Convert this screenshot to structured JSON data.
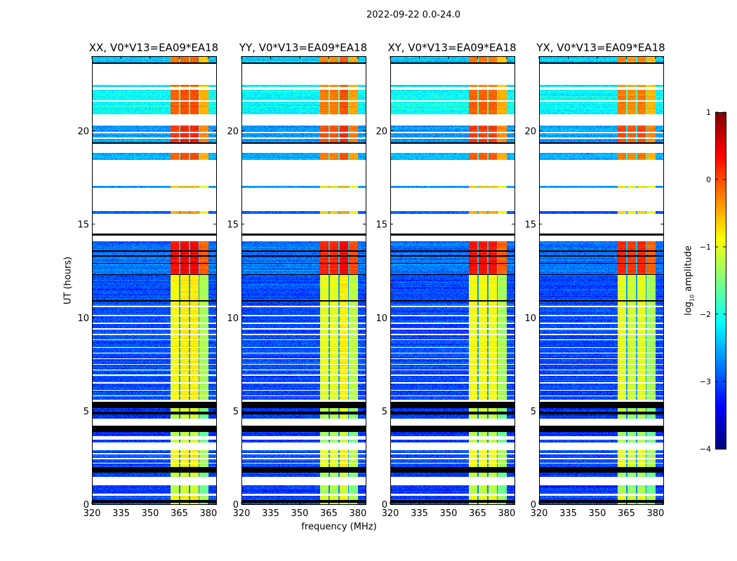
{
  "suptitle": "2022-09-22 0.0-24.0",
  "chart_data": {
    "type": "heatmap",
    "title": "2022-09-22 0.0-24.0",
    "xlabel": "frequency (MHz)",
    "ylabel": "UT (hours)",
    "xlim": [
      320,
      384
    ],
    "ylim": [
      0,
      24
    ],
    "xticks": [
      320,
      335,
      350,
      365,
      380
    ],
    "xtick_labels": [
      "320",
      "335",
      "350",
      "365",
      "380"
    ],
    "yticks": [
      0,
      5,
      10,
      15,
      20
    ],
    "ytick_labels": [
      "0",
      "5",
      "10",
      "15",
      "20"
    ],
    "colormap": "jet",
    "colorbar": {
      "label_prefix": "log",
      "label_sub": "10",
      "label_suffix": " amplitude",
      "range": [
        -4,
        1
      ],
      "ticks": [
        1,
        0,
        -1,
        -2,
        -3,
        -4
      ],
      "tick_labels": [
        "1",
        "0",
        "−1",
        "−2",
        "−3",
        "−4"
      ]
    },
    "panels": [
      {
        "title": "XX, V0*V13=EA09*EA18",
        "band_offset": [
          0.1,
          0.2,
          0.2,
          -0.3
        ]
      },
      {
        "title": "YY, V0*V13=EA09*EA18",
        "band_offset": [
          0.0,
          0.0,
          0.2,
          -0.2
        ]
      },
      {
        "title": "XY, V0*V13=EA09*EA18",
        "band_offset": [
          0.1,
          0.1,
          0.1,
          -0.3
        ]
      },
      {
        "title": "YX, V0*V13=EA09*EA18",
        "band_offset": [
          0.0,
          -0.1,
          0.0,
          -0.3
        ]
      }
    ],
    "bright_band_MHz": [
      360.5,
      380
    ],
    "subband_gaps_MHz": [
      365.2,
      370.2,
      375.2
    ],
    "time_segments": [
      {
        "from": 0.0,
        "to": 0.07,
        "kind": "data",
        "bg": -3.0,
        "band": -1.2
      },
      {
        "from": 0.07,
        "to": 0.22,
        "kind": "flagged"
      },
      {
        "from": 0.22,
        "to": 0.45,
        "kind": "data",
        "bg": -3.0,
        "band": -1.0
      },
      {
        "from": 0.45,
        "to": 0.55,
        "kind": "blank"
      },
      {
        "from": 0.55,
        "to": 1.0,
        "kind": "data",
        "bg": -3.1,
        "band": -1.3
      },
      {
        "from": 1.0,
        "to": 1.45,
        "kind": "blank"
      },
      {
        "from": 1.45,
        "to": 1.7,
        "kind": "data",
        "bg": -3.1,
        "band": -1.3
      },
      {
        "from": 1.7,
        "to": 2.0,
        "kind": "flagged"
      },
      {
        "from": 2.0,
        "to": 2.9,
        "kind": "data",
        "bg": -3.0,
        "band": -1.0
      },
      {
        "from": 2.9,
        "to": 3.3,
        "kind": "blank"
      },
      {
        "from": 3.3,
        "to": 3.45,
        "kind": "data",
        "bg": -3.1,
        "band": -1.3
      },
      {
        "from": 3.45,
        "to": 3.65,
        "kind": "blank"
      },
      {
        "from": 3.65,
        "to": 3.85,
        "kind": "data",
        "bg": -3.1,
        "band": -1.3
      },
      {
        "from": 3.85,
        "to": 4.2,
        "kind": "flagged"
      },
      {
        "from": 4.2,
        "to": 4.6,
        "kind": "blank"
      },
      {
        "from": 4.6,
        "to": 4.8,
        "kind": "data",
        "bg": -3.1,
        "band": -1.3
      },
      {
        "from": 4.8,
        "to": 4.95,
        "kind": "flagged"
      },
      {
        "from": 4.95,
        "to": 5.15,
        "kind": "data",
        "bg": -3.1,
        "band": -1.2
      },
      {
        "from": 5.15,
        "to": 5.5,
        "kind": "flagged"
      },
      {
        "from": 5.5,
        "to": 5.6,
        "kind": "blank"
      },
      {
        "from": 5.6,
        "to": 12.3,
        "kind": "data",
        "bg": -3.0,
        "band": -1.0
      },
      {
        "from": 12.3,
        "to": 14.1,
        "kind": "data",
        "bg": -2.8,
        "band": 0.2
      },
      {
        "from": 14.1,
        "to": 14.4,
        "kind": "blank"
      },
      {
        "from": 14.4,
        "to": 14.5,
        "kind": "flagged"
      },
      {
        "from": 14.5,
        "to": 15.55,
        "kind": "blank"
      },
      {
        "from": 15.55,
        "to": 15.7,
        "kind": "data",
        "bg": -2.9,
        "band": -0.6
      },
      {
        "from": 15.7,
        "to": 16.95,
        "kind": "blank"
      },
      {
        "from": 16.95,
        "to": 17.05,
        "kind": "data",
        "bg": -2.6,
        "band": -0.7
      },
      {
        "from": 17.05,
        "to": 18.45,
        "kind": "blank"
      },
      {
        "from": 18.45,
        "to": 18.8,
        "kind": "data",
        "bg": -2.5,
        "band": -0.2
      },
      {
        "from": 18.8,
        "to": 19.3,
        "kind": "blank"
      },
      {
        "from": 19.3,
        "to": 20.3,
        "kind": "data",
        "bg": -2.6,
        "band": 0.0
      },
      {
        "from": 20.3,
        "to": 20.9,
        "kind": "blank"
      },
      {
        "from": 20.9,
        "to": 22.2,
        "kind": "data",
        "bg": -2.1,
        "band": -0.2
      },
      {
        "from": 22.2,
        "to": 22.35,
        "kind": "blank"
      },
      {
        "from": 22.35,
        "to": 22.45,
        "kind": "data",
        "bg": -2.2,
        "band": -0.3
      },
      {
        "from": 22.45,
        "to": 23.6,
        "kind": "blank"
      },
      {
        "from": 23.6,
        "to": 23.68,
        "kind": "flagged"
      },
      {
        "from": 23.68,
        "to": 24.0,
        "kind": "data",
        "bg": -2.4,
        "band": -0.3
      }
    ],
    "blank_lines_hours": [
      5.8,
      6.1,
      6.5,
      6.9,
      7.2,
      7.5,
      7.8,
      8.1,
      8.4,
      8.8,
      9.1,
      9.4,
      9.7,
      10.1,
      10.6,
      2.2,
      2.45,
      2.7,
      19.6,
      19.9,
      21.6
    ],
    "flagged_lines_hours": [
      12.3,
      12.9,
      13.3,
      13.55,
      10.9,
      19.35
    ]
  }
}
